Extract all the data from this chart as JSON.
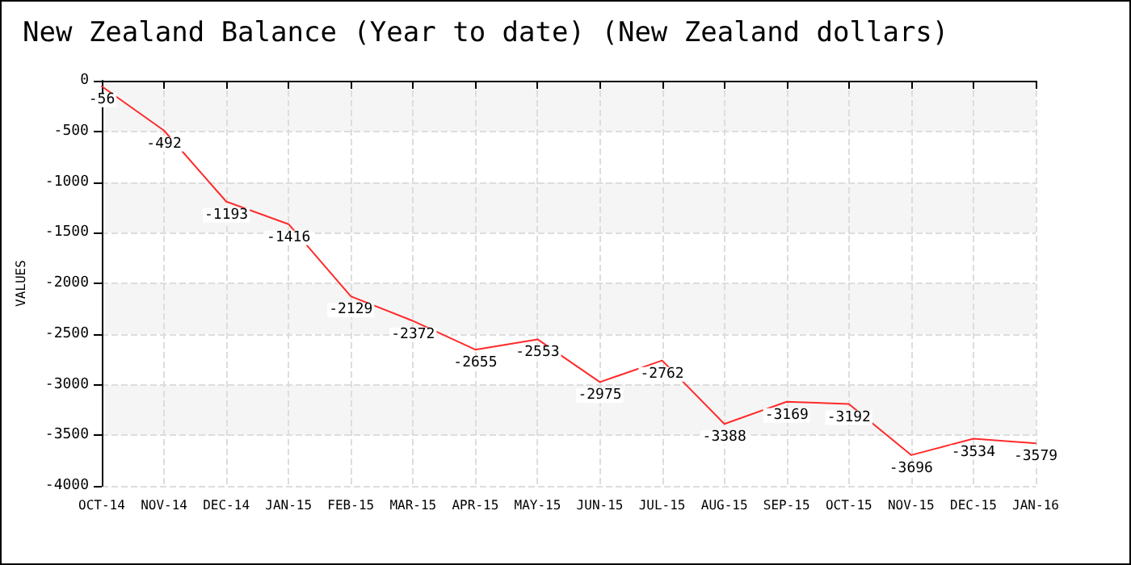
{
  "chart_data": {
    "type": "line",
    "title": "New Zealand Balance (Year to date) (New Zealand dollars)",
    "ylabel": "VALUES",
    "categories": [
      "OCT-14",
      "NOV-14",
      "DEC-14",
      "JAN-15",
      "FEB-15",
      "MAR-15",
      "APR-15",
      "MAY-15",
      "JUN-15",
      "JUL-15",
      "AUG-15",
      "SEP-15",
      "OCT-15",
      "NOV-15",
      "DEC-15",
      "JAN-16"
    ],
    "series": [
      {
        "color": "#ff2a2a",
        "values": [
          -56,
          -492,
          -1193,
          -1416,
          -2129,
          -2372,
          -2655,
          -2553,
          -2975,
          -2762,
          -3388,
          -3169,
          -3192,
          -3696,
          -3534,
          -3579
        ]
      }
    ],
    "ylim": [
      -4000,
      0
    ],
    "yticks": [
      -4000,
      -3500,
      -3000,
      -2500,
      -2000,
      -1500,
      -1000,
      -500,
      0
    ],
    "grid": true,
    "marker": "none",
    "line_style": "solid",
    "data_labels": true
  }
}
